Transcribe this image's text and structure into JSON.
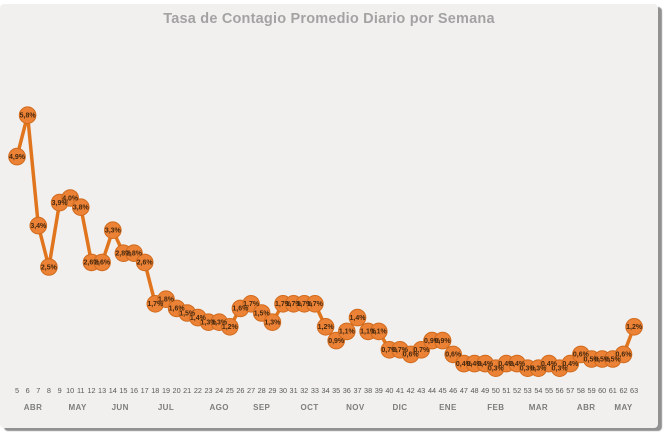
{
  "page": {
    "title": "Tasa de Contagio Promedio Diario por Semana"
  },
  "chart_data": {
    "type": "line",
    "title": "Tasa de Contagio Promedio Diario por Semana",
    "xlabel": "",
    "ylabel": "",
    "ylim": [
      0,
      6.5
    ],
    "grid": false,
    "legend": "none",
    "series_name": "Tasa de contagio promedio diario",
    "series_color": "#e0751e",
    "marker_fill": "#ec8236",
    "marker_stroke": "#d06a1c",
    "label_color": "#46280e",
    "x_weeks": [
      5,
      6,
      7,
      8,
      9,
      10,
      11,
      12,
      13,
      14,
      15,
      16,
      17,
      18,
      19,
      20,
      21,
      22,
      23,
      24,
      25,
      26,
      27,
      28,
      29,
      30,
      31,
      32,
      33,
      34,
      35,
      36,
      37,
      38,
      39,
      40,
      41,
      42,
      43,
      44,
      45,
      46,
      47,
      48,
      49,
      50,
      51,
      52,
      53,
      54,
      55,
      56,
      57,
      58,
      59,
      60,
      61,
      62,
      63
    ],
    "values": [
      4.9,
      5.8,
      3.4,
      2.5,
      3.9,
      4.0,
      3.8,
      2.6,
      2.6,
      3.3,
      2.8,
      2.8,
      2.6,
      1.7,
      1.8,
      1.6,
      1.5,
      1.4,
      1.3,
      1.3,
      1.2,
      1.6,
      1.7,
      1.5,
      1.3,
      1.7,
      1.7,
      1.7,
      1.7,
      1.2,
      0.9,
      1.1,
      1.4,
      1.1,
      1.1,
      0.7,
      0.7,
      0.6,
      0.7,
      0.9,
      0.9,
      0.6,
      0.4,
      0.4,
      0.4,
      0.3,
      0.4,
      0.4,
      0.3,
      0.3,
      0.4,
      0.3,
      0.4,
      0.6,
      0.5,
      0.5,
      0.5,
      0.6,
      1.2
    ],
    "point_labels": [
      "4,9%",
      "5,8%",
      "3,4%",
      "2,5%",
      "3,9%",
      "4,0%",
      "3,8%",
      "2,6%",
      "2,6%",
      "3,3%",
      "2,8%",
      "2,8%",
      "2,6%",
      "1,7%",
      "1,8%",
      "1,6%",
      "1,5%",
      "1,4%",
      "1,3%",
      "1,3%",
      "1,2%",
      "1,6%",
      "1,7%",
      "1,5%",
      "1,3%",
      "1,7%",
      "1,7%",
      "1,7%",
      "1,7%",
      "1,2%",
      "0,9%",
      "1,1%",
      "1,4%",
      "1,1%",
      "1,1%",
      "0,7%",
      "0,7%",
      "0,6%",
      "0,7%",
      "0,9%",
      "0,9%",
      "0,6%",
      "0,4%",
      "0,4%",
      "0,4%",
      "0,3%",
      "0,4%",
      "0,4%",
      "0,3%",
      "0,3%",
      "0,4%",
      "0,3%",
      "0,4%",
      "0,6%",
      "0,5%",
      "0,5%",
      "0,5%",
      "0,6%",
      "1,2%"
    ],
    "months": [
      {
        "label": "ABR",
        "center_week": 6.5
      },
      {
        "label": "MAY",
        "center_week": 10.7
      },
      {
        "label": "JUN",
        "center_week": 14.7
      },
      {
        "label": "JUL",
        "center_week": 19.0
      },
      {
        "label": "AGO",
        "center_week": 24.0
      },
      {
        "label": "SEP",
        "center_week": 28.0
      },
      {
        "label": "OCT",
        "center_week": 32.5
      },
      {
        "label": "NOV",
        "center_week": 36.8
      },
      {
        "label": "DIC",
        "center_week": 41.0
      },
      {
        "label": "ENE",
        "center_week": 45.5
      },
      {
        "label": "FEB",
        "center_week": 50.0
      },
      {
        "label": "MAR",
        "center_week": 54.0
      },
      {
        "label": "ABR",
        "center_week": 58.5
      },
      {
        "label": "MAY",
        "center_week": 62.0
      }
    ]
  }
}
